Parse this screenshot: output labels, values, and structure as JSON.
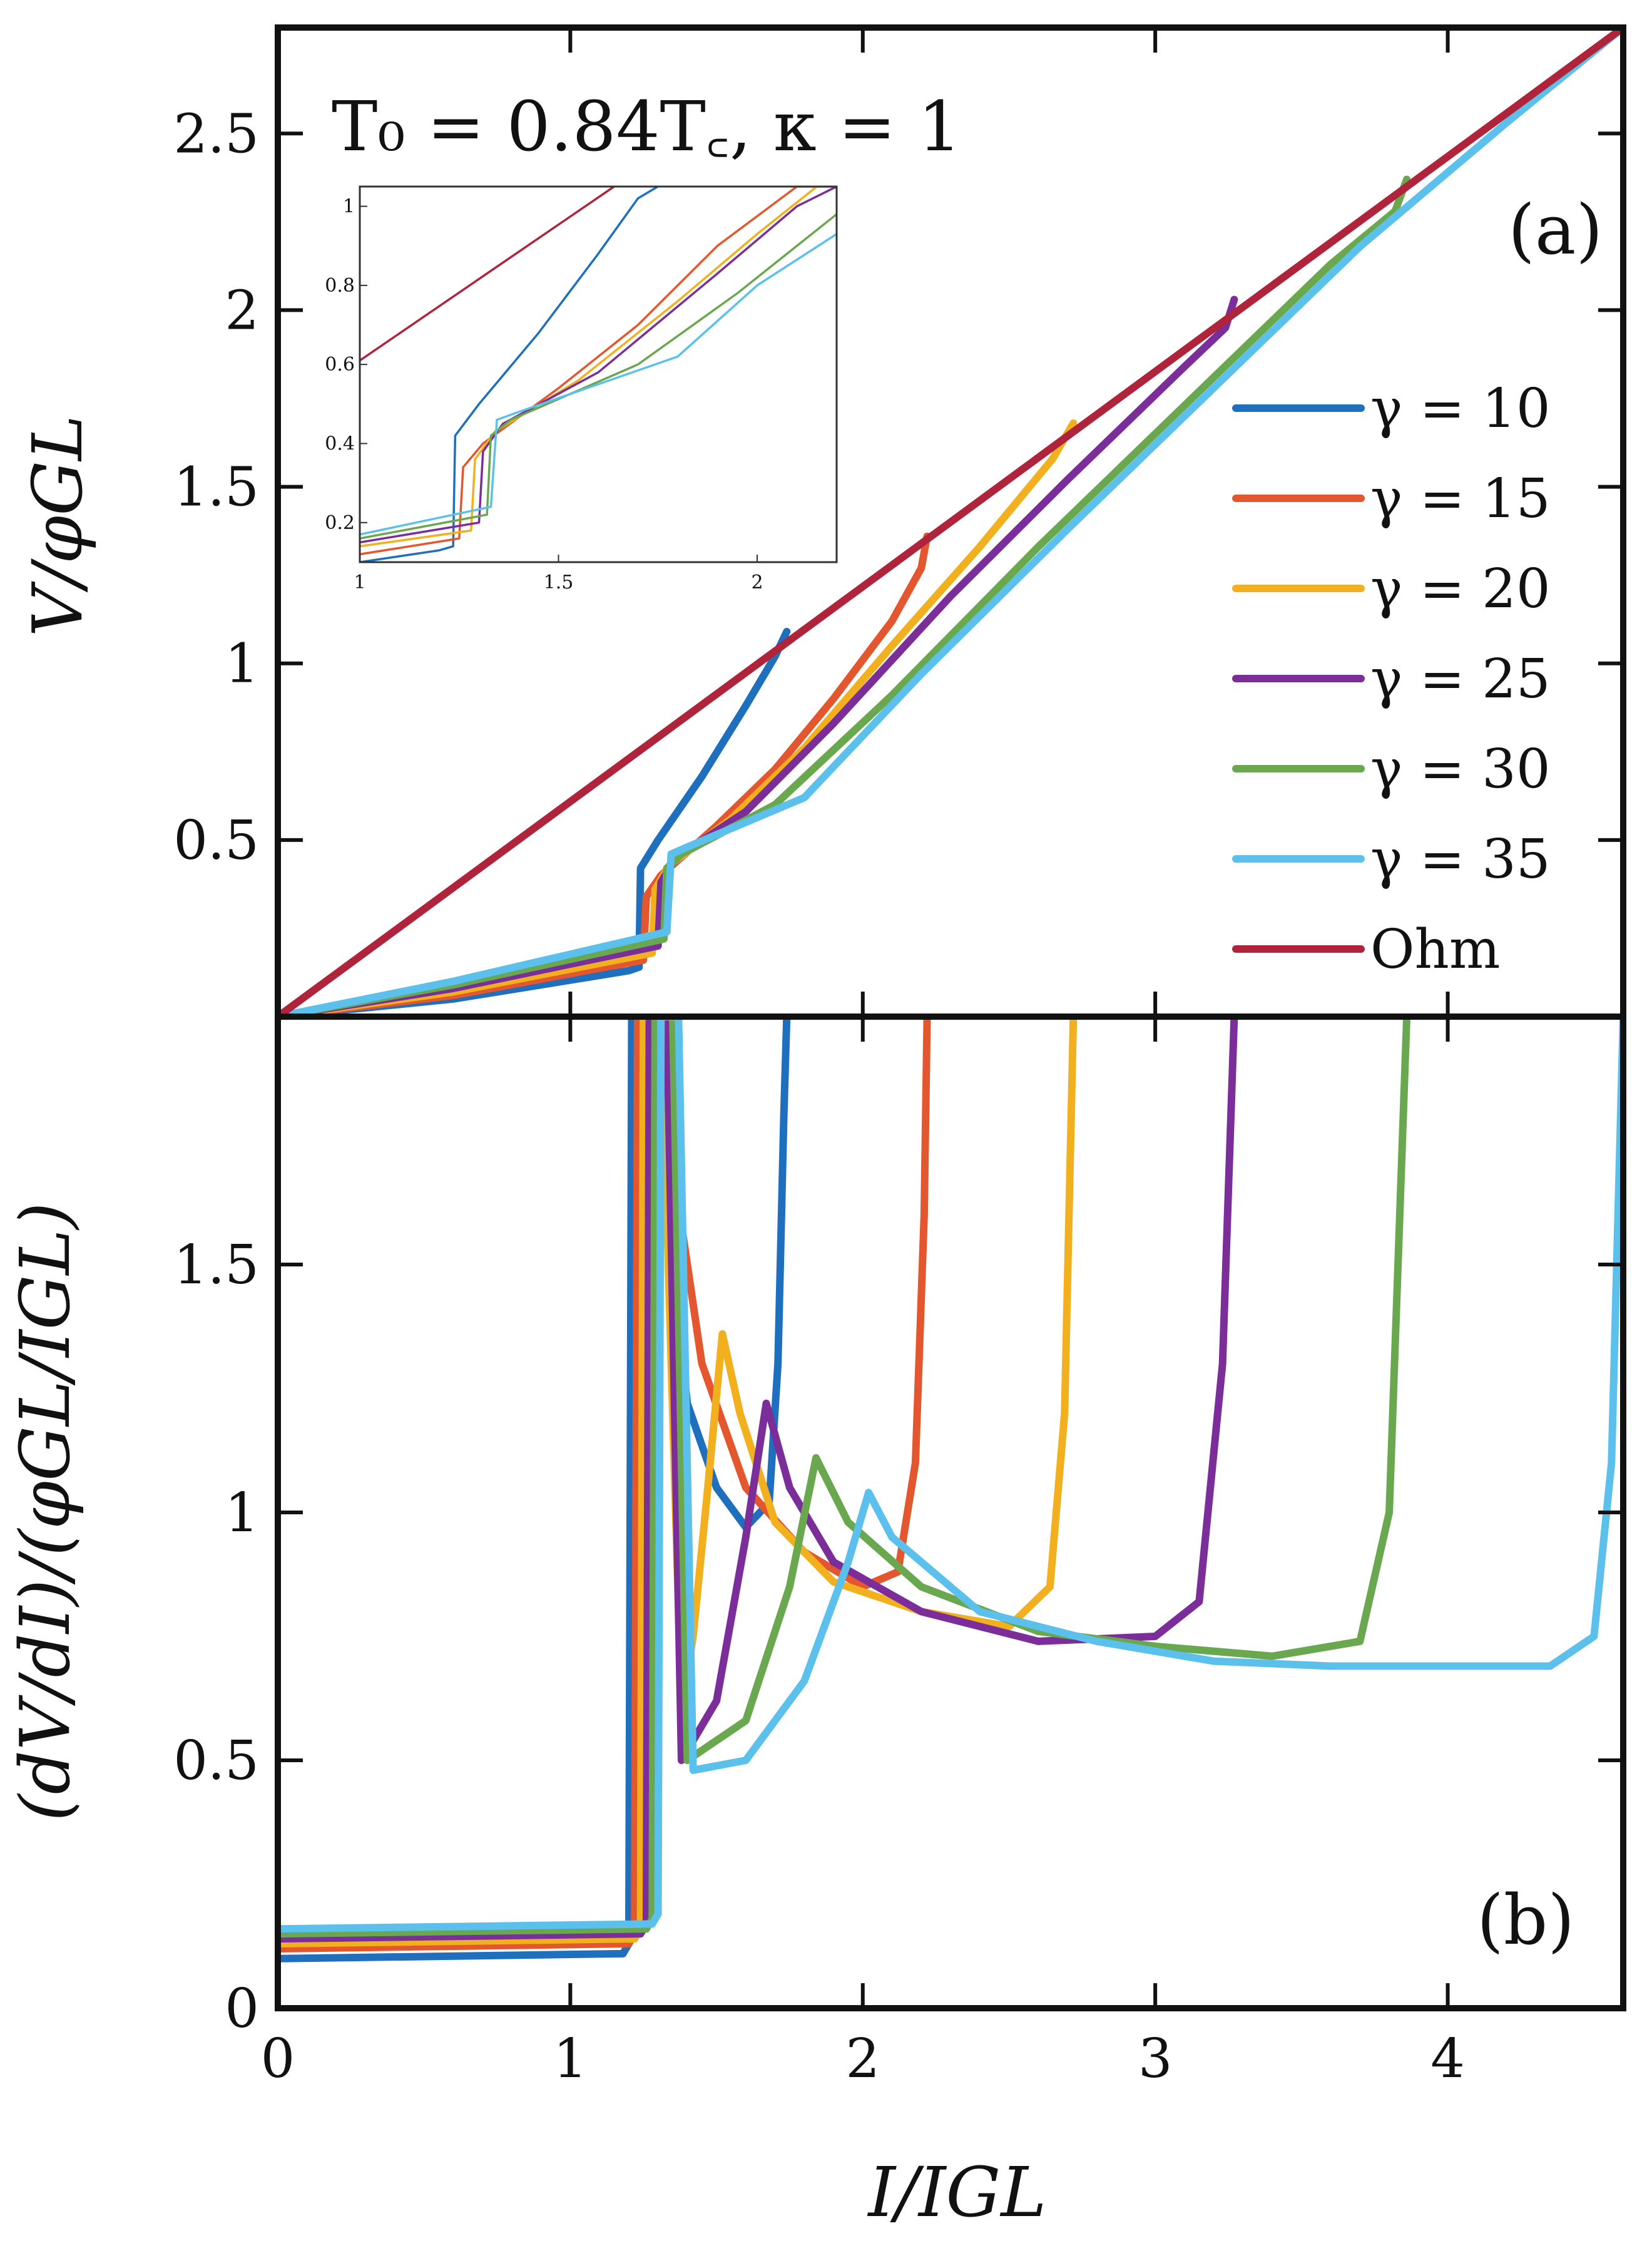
{
  "chart_data": [
    {
      "panel": "top",
      "type": "line",
      "title": "T_0 = 0.84T_c, κ = 1",
      "panel_label": "(a)",
      "ylabel": "V/φ_GL",
      "xlabel": "",
      "xlim": [
        0,
        4.6
      ],
      "ylim": [
        0,
        2.8
      ],
      "yticks": [
        "0.5",
        "1",
        "1.5",
        "2",
        "2.5"
      ],
      "ytick_values": [
        0.5,
        1,
        1.5,
        2,
        2.5
      ],
      "series": [
        {
          "name": "γ = 10",
          "color": "#1f6fbf",
          "x": [
            0,
            0.6,
            1.2,
            1.235,
            1.24,
            1.3,
            1.45,
            1.6,
            1.7,
            1.74
          ],
          "y": [
            0,
            0.05,
            0.13,
            0.14,
            0.42,
            0.5,
            0.68,
            0.88,
            1.02,
            1.09
          ]
        },
        {
          "name": "γ = 15",
          "color": "#e4572e",
          "x": [
            0,
            0.6,
            1.25,
            1.26,
            1.31,
            1.5,
            1.7,
            1.9,
            2.1,
            2.2,
            2.22
          ],
          "y": [
            0,
            0.06,
            0.16,
            0.34,
            0.4,
            0.54,
            0.7,
            0.9,
            1.12,
            1.27,
            1.36
          ]
        },
        {
          "name": "γ = 20",
          "color": "#f2b01e",
          "x": [
            0,
            0.6,
            1.28,
            1.29,
            1.34,
            1.55,
            1.8,
            2.1,
            2.4,
            2.65,
            2.72
          ],
          "y": [
            0,
            0.07,
            0.18,
            0.36,
            0.43,
            0.56,
            0.76,
            1.05,
            1.33,
            1.58,
            1.68
          ]
        },
        {
          "name": "γ = 25",
          "color": "#7b2d9a",
          "x": [
            0,
            0.6,
            1.3,
            1.31,
            1.36,
            1.6,
            1.9,
            2.3,
            2.7,
            3.1,
            3.24,
            3.27
          ],
          "y": [
            0,
            0.08,
            0.2,
            0.38,
            0.45,
            0.58,
            0.83,
            1.19,
            1.52,
            1.84,
            1.95,
            2.03
          ]
        },
        {
          "name": "γ = 30",
          "color": "#6aa84f",
          "x": [
            0,
            0.6,
            1.32,
            1.33,
            1.38,
            1.7,
            2.1,
            2.6,
            3.1,
            3.6,
            3.82,
            3.86
          ],
          "y": [
            0,
            0.09,
            0.22,
            0.42,
            0.46,
            0.6,
            0.91,
            1.33,
            1.73,
            2.13,
            2.28,
            2.37
          ]
        },
        {
          "name": "γ = 35",
          "color": "#5bc0eb",
          "x": [
            0,
            0.6,
            1.33,
            1.345,
            1.4,
            1.8,
            2.2,
            2.7,
            3.2,
            3.7,
            4.2,
            4.6
          ],
          "y": [
            0,
            0.1,
            0.24,
            0.46,
            0.48,
            0.62,
            0.97,
            1.38,
            1.78,
            2.18,
            2.53,
            2.8
          ]
        },
        {
          "name": "Ohm",
          "color": "#b0243b",
          "x": [
            0,
            4.6
          ],
          "y": [
            0,
            2.8
          ]
        }
      ]
    },
    {
      "panel": "inset",
      "type": "line",
      "xlim": [
        1,
        2.2
      ],
      "ylim": [
        0.1,
        1.05
      ],
      "xticks": [
        "1",
        "1.5",
        "2"
      ],
      "xtick_values": [
        1,
        1.5,
        2
      ],
      "yticks": [
        "0.2",
        "0.4",
        "0.6",
        "0.8",
        "1"
      ],
      "ytick_values": [
        0.2,
        0.4,
        0.6,
        0.8,
        1
      ],
      "series": [
        {
          "name": "γ = 10",
          "color": "#1f6fbf",
          "x": [
            1,
            1.2,
            1.235,
            1.24,
            1.3,
            1.45,
            1.6,
            1.7,
            1.75
          ],
          "y": [
            0.1,
            0.13,
            0.14,
            0.42,
            0.5,
            0.68,
            0.88,
            1.02,
            1.05
          ]
        },
        {
          "name": "γ = 15",
          "color": "#e4572e",
          "x": [
            1,
            1.25,
            1.26,
            1.31,
            1.5,
            1.7,
            1.9,
            2.1,
            2.2
          ],
          "y": [
            0.12,
            0.16,
            0.34,
            0.4,
            0.54,
            0.7,
            0.9,
            1.05,
            1.05
          ]
        },
        {
          "name": "γ = 20",
          "color": "#f2b01e",
          "x": [
            1,
            1.28,
            1.29,
            1.34,
            1.55,
            1.8,
            2.0,
            2.15
          ],
          "y": [
            0.14,
            0.18,
            0.36,
            0.43,
            0.56,
            0.76,
            0.93,
            1.05
          ]
        },
        {
          "name": "γ = 25",
          "color": "#7b2d9a",
          "x": [
            1,
            1.3,
            1.31,
            1.36,
            1.6,
            1.9,
            2.1,
            2.2
          ],
          "y": [
            0.15,
            0.2,
            0.38,
            0.45,
            0.58,
            0.83,
            1.0,
            1.05
          ]
        },
        {
          "name": "γ = 30",
          "color": "#6aa84f",
          "x": [
            1,
            1.32,
            1.33,
            1.38,
            1.7,
            1.95,
            2.2
          ],
          "y": [
            0.16,
            0.22,
            0.42,
            0.46,
            0.6,
            0.78,
            0.98
          ]
        },
        {
          "name": "γ = 35",
          "color": "#5bc0eb",
          "x": [
            1,
            1.33,
            1.345,
            1.4,
            1.8,
            2.0,
            2.2
          ],
          "y": [
            0.17,
            0.24,
            0.46,
            0.48,
            0.62,
            0.8,
            0.93
          ]
        },
        {
          "name": "Ohm",
          "color": "#b0243b",
          "x": [
            1,
            1.64
          ],
          "y": [
            0.61,
            1.05
          ]
        }
      ]
    },
    {
      "panel": "bottom",
      "type": "line",
      "panel_label": "(b)",
      "xlabel": "I/I_GL",
      "ylabel": "(dV/dI)/(φ_GL/I_GL)",
      "xlim": [
        0,
        4.6
      ],
      "ylim": [
        0,
        2.0
      ],
      "xticks": [
        "0",
        "1",
        "2",
        "3",
        "4"
      ],
      "xtick_values": [
        0,
        1,
        2,
        3,
        4
      ],
      "yticks": [
        "0",
        "0.5",
        "1",
        "1.5"
      ],
      "ytick_values": [
        0,
        0.5,
        1,
        1.5
      ],
      "series": [
        {
          "name": "γ = 10",
          "color": "#1f6fbf",
          "x": [
            0,
            1.18,
            1.2,
            1.21,
            1.25,
            1.3,
            1.35,
            1.4,
            1.5,
            1.6,
            1.68,
            1.71,
            1.73,
            1.74
          ],
          "y": [
            0.1,
            0.11,
            0.13,
            2.0,
            2.0,
            2.0,
            1.5,
            1.22,
            1.05,
            0.97,
            1.02,
            1.3,
            1.8,
            2.0
          ]
        },
        {
          "name": "γ = 15",
          "color": "#e4572e",
          "x": [
            0,
            1.2,
            1.22,
            1.23,
            1.27,
            1.3,
            1.36,
            1.38,
            1.45,
            1.6,
            1.8,
            2.0,
            2.12,
            2.18,
            2.21,
            2.22
          ],
          "y": [
            0.12,
            0.13,
            0.15,
            2.0,
            2.0,
            2.0,
            1.55,
            1.58,
            1.3,
            1.05,
            0.92,
            0.85,
            0.88,
            1.1,
            1.6,
            2.0
          ]
        },
        {
          "name": "γ = 20",
          "color": "#f2b01e",
          "x": [
            0,
            1.22,
            1.24,
            1.25,
            1.29,
            1.31,
            1.38,
            1.42,
            1.47,
            1.52,
            1.58,
            1.7,
            1.9,
            2.2,
            2.5,
            2.64,
            2.69,
            2.72
          ],
          "y": [
            0.13,
            0.14,
            0.16,
            2.0,
            2.0,
            2.0,
            0.6,
            0.75,
            1.05,
            1.36,
            1.2,
            0.98,
            0.86,
            0.8,
            0.77,
            0.85,
            1.2,
            2.0
          ]
        },
        {
          "name": "γ = 25",
          "color": "#7b2d9a",
          "x": [
            0,
            1.24,
            1.26,
            1.27,
            1.31,
            1.33,
            1.38,
            1.5,
            1.6,
            1.67,
            1.75,
            1.9,
            2.2,
            2.6,
            3.0,
            3.15,
            3.23,
            3.27
          ],
          "y": [
            0.14,
            0.15,
            0.17,
            2.0,
            2.0,
            2.0,
            0.5,
            0.62,
            0.95,
            1.22,
            1.05,
            0.9,
            0.8,
            0.74,
            0.75,
            0.82,
            1.3,
            2.0
          ]
        },
        {
          "name": "γ = 30",
          "color": "#6aa84f",
          "x": [
            0,
            1.26,
            1.28,
            1.29,
            1.33,
            1.35,
            1.4,
            1.6,
            1.75,
            1.84,
            1.95,
            2.2,
            2.6,
            3.0,
            3.4,
            3.7,
            3.8,
            3.86
          ],
          "y": [
            0.15,
            0.16,
            0.18,
            2.0,
            2.0,
            2.0,
            0.5,
            0.58,
            0.85,
            1.11,
            0.98,
            0.85,
            0.76,
            0.73,
            0.71,
            0.74,
            1.0,
            2.0
          ]
        },
        {
          "name": "γ = 35",
          "color": "#5bc0eb",
          "x": [
            0,
            1.28,
            1.3,
            1.31,
            1.35,
            1.37,
            1.42,
            1.6,
            1.8,
            1.95,
            2.02,
            2.1,
            2.4,
            2.8,
            3.2,
            3.6,
            4.0,
            4.35,
            4.5,
            4.56,
            4.6
          ],
          "y": [
            0.16,
            0.17,
            0.19,
            2.0,
            2.0,
            2.0,
            0.48,
            0.5,
            0.66,
            0.9,
            1.04,
            0.95,
            0.8,
            0.74,
            0.7,
            0.69,
            0.69,
            0.69,
            0.75,
            1.1,
            2.0
          ]
        }
      ]
    }
  ],
  "labels": {
    "top_annotation": "T₀ = 0.84T꜀, κ = 1",
    "top_panel_label": "(a)",
    "bottom_panel_label": "(b)",
    "top_ylabel": "V/φGL",
    "bottom_ylabel": "(dV/dI)/(φGL/IGL)",
    "xlabel": "I/IGL"
  },
  "legend": [
    {
      "label": "γ = 10",
      "color": "#1f6fbf"
    },
    {
      "label": "γ = 15",
      "color": "#e4572e"
    },
    {
      "label": "γ = 20",
      "color": "#f2b01e"
    },
    {
      "label": "γ = 25",
      "color": "#7b2d9a"
    },
    {
      "label": "γ = 30",
      "color": "#6aa84f"
    },
    {
      "label": "γ = 35",
      "color": "#5bc0eb"
    },
    {
      "label": "Ohm",
      "color": "#b0243b"
    }
  ]
}
